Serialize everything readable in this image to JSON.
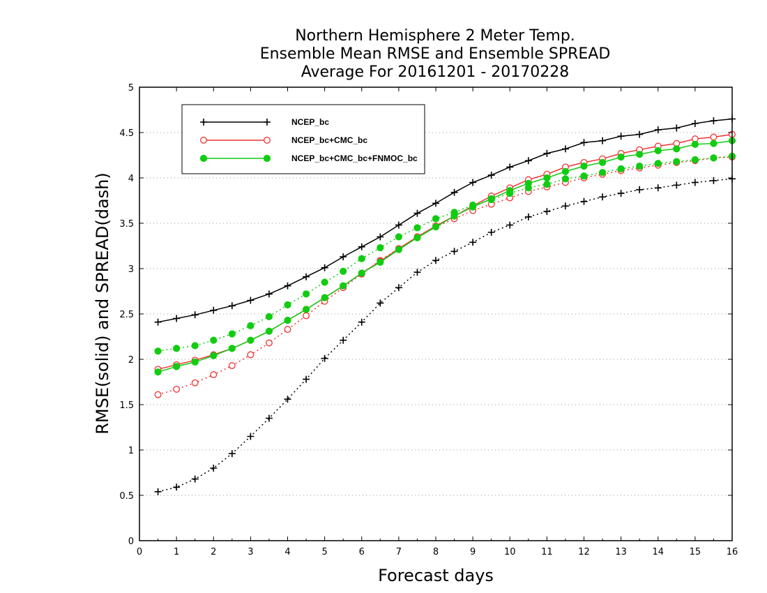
{
  "chart_data": {
    "type": "line",
    "title": [
      "Northern Hemisphere 2 Meter Temp.",
      "Ensemble Mean RMSE and Ensemble SPREAD",
      "Average For 20161201 - 20170228"
    ],
    "xlabel": "Forecast days",
    "ylabel": "RMSE(solid) and SPREAD(dash)",
    "xlim": [
      0,
      16
    ],
    "ylim": [
      0,
      5
    ],
    "xticks": [
      0,
      1,
      2,
      3,
      4,
      5,
      6,
      7,
      8,
      9,
      10,
      11,
      12,
      13,
      14,
      15,
      16
    ],
    "yticks": [
      0,
      0.5,
      1,
      1.5,
      2,
      2.5,
      3,
      3.5,
      4,
      4.5,
      5
    ],
    "xtick_labels": [
      "0",
      "1",
      "2",
      "3",
      "4",
      "5",
      "6",
      "7",
      "8",
      "9",
      "10",
      "11",
      "12",
      "13",
      "14",
      "15",
      "16"
    ],
    "ytick_labels": [
      "0",
      "0.5",
      "1",
      "1.5",
      "2",
      "2.5",
      "3",
      "3.5",
      "4",
      "4.5",
      "5"
    ],
    "grid": "horizontal-dotted",
    "legend_position": "top-left",
    "x": [
      0.5,
      1,
      1.5,
      2,
      2.5,
      3,
      3.5,
      4,
      4.5,
      5,
      5.5,
      6,
      6.5,
      7,
      7.5,
      8,
      8.5,
      9,
      9.5,
      10,
      10.5,
      11,
      11.5,
      12,
      12.5,
      13,
      13.5,
      14,
      14.5,
      15,
      15.5,
      16
    ],
    "series": [
      {
        "name": "NCEP_bc",
        "color": "#000000",
        "marker": "plus",
        "rmse": [
          2.41,
          2.45,
          2.49,
          2.54,
          2.59,
          2.65,
          2.72,
          2.81,
          2.91,
          3.01,
          3.13,
          3.24,
          3.35,
          3.48,
          3.61,
          3.72,
          3.84,
          3.95,
          4.03,
          4.12,
          4.19,
          4.27,
          4.32,
          4.39,
          4.41,
          4.46,
          4.48,
          4.53,
          4.55,
          4.6,
          4.63,
          4.65
        ],
        "spread": [
          0.54,
          0.59,
          0.68,
          0.8,
          0.96,
          1.15,
          1.35,
          1.56,
          1.78,
          2.01,
          2.21,
          2.41,
          2.62,
          2.79,
          2.96,
          3.09,
          3.19,
          3.29,
          3.4,
          3.48,
          3.57,
          3.63,
          3.69,
          3.74,
          3.79,
          3.83,
          3.87,
          3.89,
          3.92,
          3.95,
          3.97,
          3.99
        ]
      },
      {
        "name": "NCEP_bc+CMC_bc",
        "color": "#ee3333",
        "marker": "open-circle",
        "rmse": [
          1.89,
          1.94,
          1.99,
          2.05,
          2.12,
          2.21,
          2.31,
          2.43,
          2.55,
          2.68,
          2.81,
          2.95,
          3.08,
          3.22,
          3.35,
          3.47,
          3.58,
          3.69,
          3.8,
          3.89,
          3.98,
          4.04,
          4.12,
          4.17,
          4.21,
          4.27,
          4.31,
          4.35,
          4.38,
          4.43,
          4.45,
          4.48
        ],
        "spread": [
          1.61,
          1.67,
          1.74,
          1.83,
          1.93,
          2.05,
          2.18,
          2.33,
          2.48,
          2.64,
          2.79,
          2.94,
          3.09,
          3.22,
          3.35,
          3.46,
          3.55,
          3.64,
          3.71,
          3.78,
          3.85,
          3.9,
          3.95,
          4.0,
          4.04,
          4.08,
          4.11,
          4.14,
          4.17,
          4.19,
          4.22,
          4.23
        ]
      },
      {
        "name": "NCEP_bc+CMC_bc+FNMOC_bc",
        "color": "#11cc11",
        "marker": "filled-circle",
        "rmse": [
          1.86,
          1.92,
          1.97,
          2.04,
          2.12,
          2.21,
          2.31,
          2.43,
          2.55,
          2.68,
          2.81,
          2.95,
          3.07,
          3.21,
          3.34,
          3.46,
          3.58,
          3.68,
          3.77,
          3.86,
          3.94,
          4.0,
          4.07,
          4.13,
          4.17,
          4.23,
          4.26,
          4.3,
          4.32,
          4.37,
          4.38,
          4.41
        ],
        "spread": [
          2.09,
          2.12,
          2.15,
          2.21,
          2.28,
          2.37,
          2.47,
          2.6,
          2.72,
          2.85,
          2.97,
          3.11,
          3.23,
          3.35,
          3.45,
          3.55,
          3.62,
          3.7,
          3.76,
          3.83,
          3.89,
          3.93,
          3.99,
          4.02,
          4.06,
          4.1,
          4.13,
          4.16,
          4.18,
          4.2,
          4.22,
          4.24
        ]
      }
    ]
  }
}
